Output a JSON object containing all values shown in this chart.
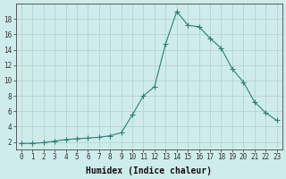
{
  "x": [
    0,
    1,
    2,
    3,
    4,
    5,
    6,
    7,
    8,
    9,
    10,
    11,
    12,
    13,
    14,
    15,
    16,
    17,
    18,
    19,
    20,
    21,
    22,
    23
  ],
  "y": [
    1.8,
    1.8,
    1.9,
    2.1,
    2.3,
    2.4,
    2.5,
    2.6,
    2.8,
    3.2,
    5.5,
    8.0,
    9.2,
    14.8,
    19.0,
    17.2,
    17.0,
    15.5,
    14.2,
    11.5,
    9.8,
    7.2,
    5.8,
    4.8
  ],
  "line_color": "#2d7f75",
  "marker": "+",
  "marker_size": 4,
  "bg_color": "#ceecea",
  "grid_color": "#b0d0cc",
  "xlabel": "Humidex (Indice chaleur)",
  "xlim_min": -0.5,
  "xlim_max": 23.5,
  "ylim_min": 1.0,
  "ylim_max": 20.0,
  "yticks": [
    2,
    4,
    6,
    8,
    10,
    12,
    14,
    16,
    18
  ],
  "xticks": [
    0,
    1,
    2,
    3,
    4,
    5,
    6,
    7,
    8,
    9,
    10,
    11,
    12,
    13,
    14,
    15,
    16,
    17,
    18,
    19,
    20,
    21,
    22,
    23
  ],
  "tick_fontsize": 5.5,
  "xlabel_fontsize": 7,
  "xlabel_bold": true
}
